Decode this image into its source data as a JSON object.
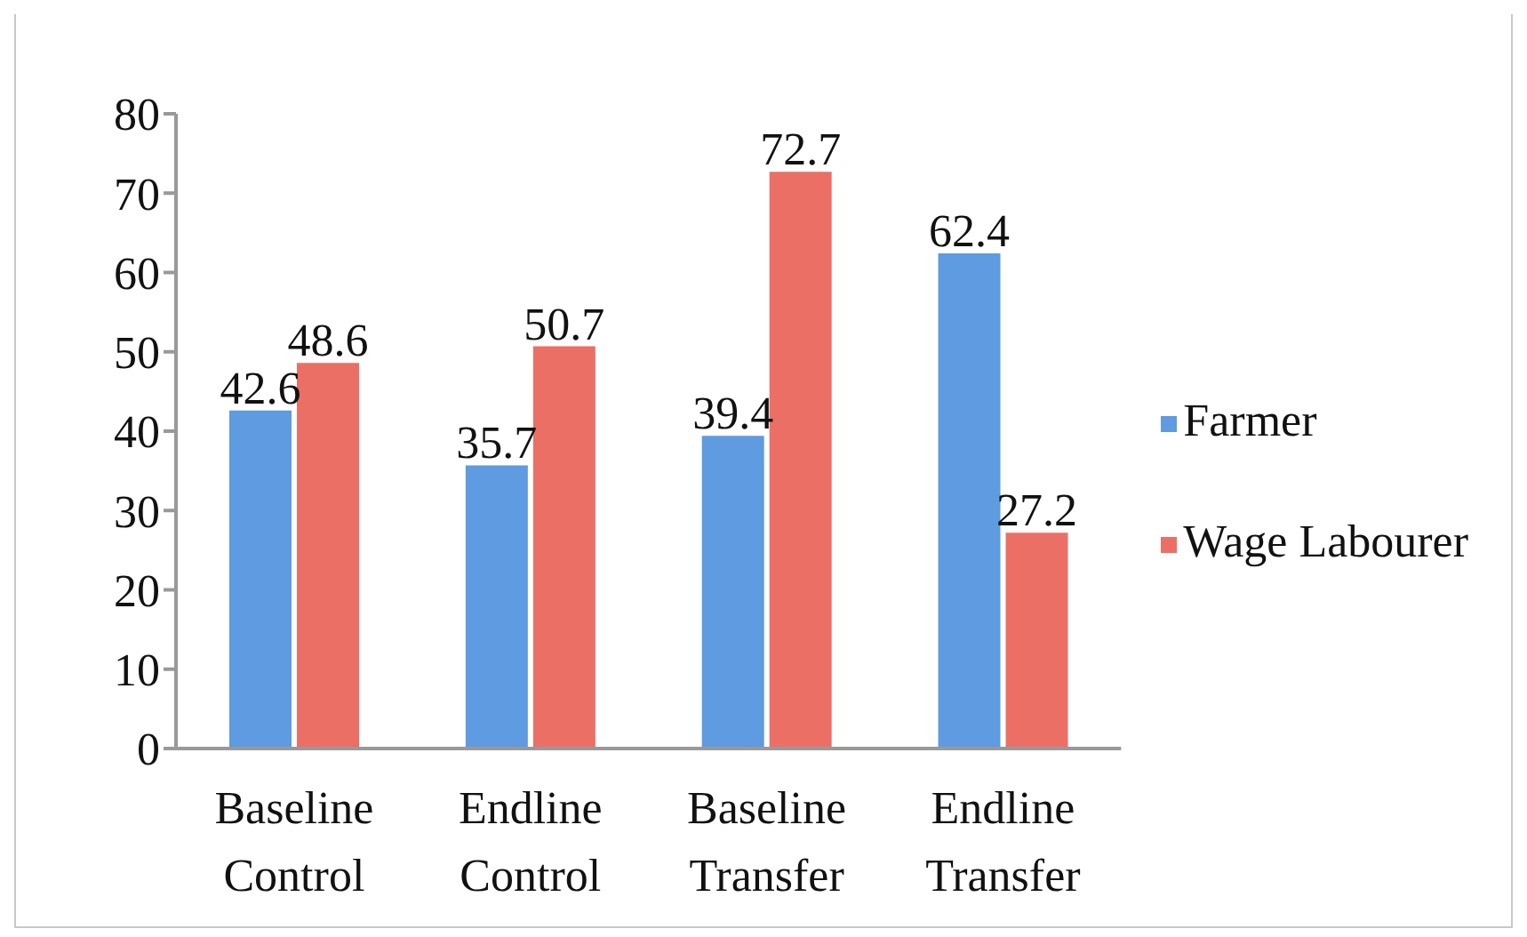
{
  "chart_data": {
    "type": "bar",
    "categories": [
      "Baseline Control",
      "Endline Control",
      "Baseline Transfer",
      "Endline Transfer"
    ],
    "series": [
      {
        "name": "Farmer",
        "color": "#5e9be0",
        "values": [
          42.6,
          35.7,
          39.4,
          62.4
        ]
      },
      {
        "name": "Wage Labourer",
        "color": "#ec6f66",
        "values": [
          48.6,
          50.7,
          72.7,
          27.2
        ]
      }
    ],
    "ylim": [
      0,
      80
    ],
    "yticks": [
      0,
      10,
      20,
      30,
      40,
      50,
      60,
      70,
      80
    ],
    "data_labels": true,
    "legend": "right",
    "grid": false
  }
}
